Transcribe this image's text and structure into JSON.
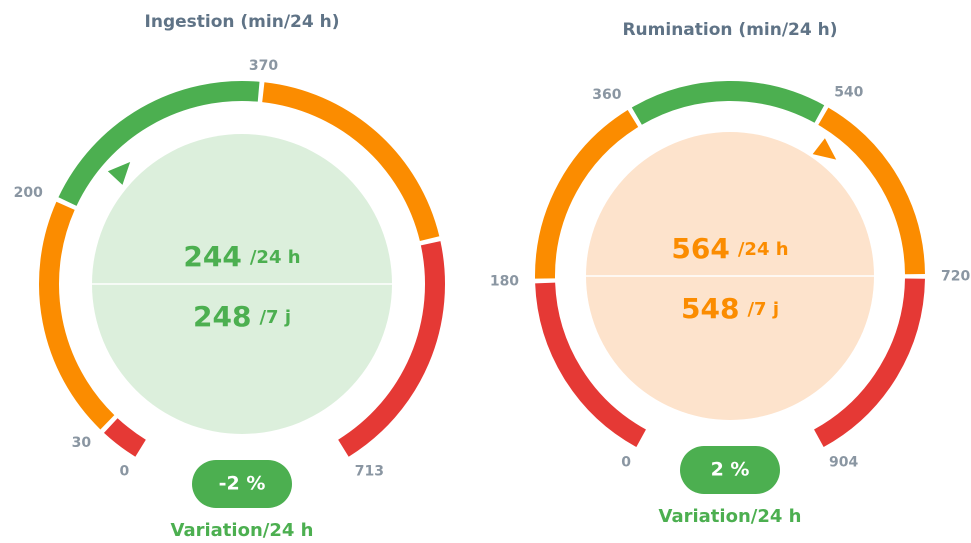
{
  "chart_data": [
    {
      "type": "gauge",
      "title": "Ingestion (min/24 h)",
      "lim": [
        0,
        713
      ],
      "ticks": [
        0,
        30,
        200,
        370,
        713
      ],
      "segments": [
        {
          "from": 0,
          "to": 30,
          "color": "#e53935"
        },
        {
          "from": 30,
          "to": 200,
          "color": "#fb8c00"
        },
        {
          "from": 200,
          "to": 370,
          "color": "#4caf50"
        },
        {
          "from": 370,
          "to": 541,
          "color": "#fb8c00"
        },
        {
          "from": 541,
          "to": 713,
          "color": "#e53935"
        }
      ],
      "value": 244,
      "value_unit": "/24 h",
      "average": 248,
      "average_unit": "/7 j",
      "fill": "#dcefdc",
      "text_color": "#4caf50",
      "variation": "-2 %",
      "variation_title": "Variation/24 h"
    },
    {
      "type": "gauge",
      "title": "Rumination (min/24 h)",
      "lim": [
        0,
        904
      ],
      "ticks": [
        0,
        180,
        360,
        540,
        720,
        904
      ],
      "segments": [
        {
          "from": 0,
          "to": 180,
          "color": "#e53935"
        },
        {
          "from": 180,
          "to": 360,
          "color": "#fb8c00"
        },
        {
          "from": 360,
          "to": 540,
          "color": "#4caf50"
        },
        {
          "from": 540,
          "to": 720,
          "color": "#fb8c00"
        },
        {
          "from": 720,
          "to": 904,
          "color": "#e53935"
        }
      ],
      "value": 564,
      "value_unit": "/24 h",
      "average": 548,
      "average_unit": "/7 j",
      "fill": "#fde3cc",
      "text_color": "#fb8c00",
      "variation": "2 %",
      "variation_title": "Variation/24 h"
    }
  ]
}
